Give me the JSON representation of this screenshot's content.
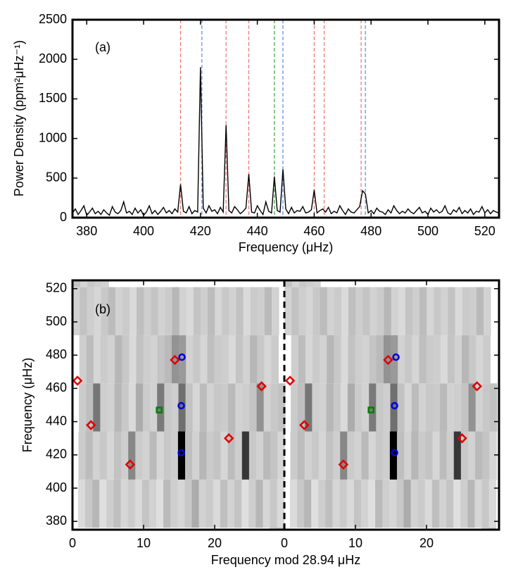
{
  "chart_data": [
    {
      "type": "line",
      "title": "(a)",
      "xlabel": "Frequency (μHz)",
      "ylabel": "Power Density (ppm²μHz⁻¹)",
      "color": "#000000",
      "x": [
        375,
        376,
        377,
        378,
        379,
        380,
        381,
        382,
        383,
        384,
        385,
        386,
        387,
        388,
        389,
        390,
        391,
        392,
        393,
        394,
        395,
        396,
        397,
        398,
        399,
        400,
        401,
        402,
        403,
        404,
        405,
        406,
        407,
        408,
        409,
        410,
        411,
        412,
        413,
        414,
        415,
        416,
        417,
        418,
        419,
        420,
        421,
        422,
        423,
        424,
        425,
        426,
        427,
        428,
        429,
        430,
        431,
        432,
        433,
        434,
        435,
        436,
        437,
        438,
        439,
        440,
        441,
        442,
        443,
        444,
        445,
        446,
        447,
        448,
        449,
        450,
        451,
        452,
        453,
        454,
        455,
        456,
        457,
        458,
        459,
        460,
        461,
        462,
        463,
        464,
        465,
        466,
        467,
        468,
        469,
        470,
        471,
        472,
        473,
        474,
        475,
        476,
        477,
        478,
        479,
        480,
        481,
        482,
        483,
        484,
        485,
        486,
        487,
        488,
        489,
        490,
        491,
        492,
        493,
        494,
        495,
        496,
        497,
        498,
        499,
        500,
        501,
        502,
        503,
        504,
        505,
        506,
        507,
        508,
        509,
        510,
        511,
        512,
        513,
        514,
        515,
        516,
        517,
        518,
        519,
        520,
        521,
        522,
        523,
        524,
        525
      ],
      "values": [
        60,
        110,
        40,
        90,
        150,
        30,
        70,
        120,
        50,
        80,
        40,
        100,
        60,
        30,
        140,
        70,
        50,
        90,
        200,
        60,
        80,
        40,
        120,
        60,
        100,
        30,
        70,
        150,
        50,
        90,
        40,
        80,
        130,
        60,
        90,
        50,
        110,
        70,
        420,
        80,
        60,
        140,
        50,
        90,
        70,
        1900,
        120,
        60,
        150,
        80,
        100,
        50,
        130,
        70,
        1170,
        90,
        60,
        140,
        100,
        50,
        80,
        120,
        550,
        70,
        60,
        150,
        90,
        40,
        200,
        80,
        60,
        520,
        90,
        70,
        610,
        110,
        50,
        130,
        60,
        90,
        80,
        140,
        60,
        70,
        100,
        350,
        60,
        90,
        110,
        70,
        130,
        50,
        80,
        60,
        150,
        90,
        40,
        110,
        70,
        60,
        100,
        140,
        340,
        300,
        60,
        90,
        50,
        120,
        80,
        70,
        40,
        100,
        60,
        150,
        90,
        50,
        80,
        60,
        110,
        70,
        50,
        90,
        130,
        60,
        80,
        40,
        120,
        70,
        100,
        60,
        80,
        150,
        60,
        40,
        100,
        70,
        130,
        50,
        90,
        60,
        110,
        40,
        80,
        70,
        140,
        60,
        100,
        50,
        90,
        70,
        60
      ],
      "modes": [
        {
          "color": "#f07070",
          "values": [
            413,
            429,
            437,
            460,
            463.5,
            476.5
          ]
        },
        {
          "color": "#6080f0",
          "values": [
            420.5,
            449,
            478
          ]
        },
        {
          "color": "#40a040",
          "values": [
            446
          ]
        }
      ],
      "xlim": [
        375,
        525
      ],
      "xticks": [
        380,
        400,
        420,
        440,
        460,
        480,
        500,
        520
      ],
      "ylim": [
        0,
        2500
      ],
      "yticks": [
        0,
        500,
        1000,
        1500,
        2000,
        2500
      ]
    },
    {
      "type": "scatter",
      "title": "(b)",
      "xlabel": "Frequency mod 28.94 μHz",
      "ylabel": "Frequency (μHz)",
      "period": 28.94,
      "divider": 29.8,
      "series": [
        {
          "marker": "diamond",
          "color": "#e00000",
          "x": [
            0.7,
            2.6,
            8.1,
            14.4,
            22,
            26.6,
            30.6,
            32.6,
            38.1,
            44.4,
            54.8,
            56.9
          ],
          "values": [
            464.6,
            437.9,
            414.2,
            477.1,
            430,
            461.3,
            464.6,
            437.9,
            414.2,
            477.1,
            430,
            461.3
          ]
        },
        {
          "marker": "circle",
          "color": "#0000e0",
          "x": [
            15.4,
            15.3,
            15.3,
            45.5,
            45.3,
            45.3
          ],
          "values": [
            478.8,
            449.6,
            421.3,
            478.8,
            449.6,
            421.3
          ]
        },
        {
          "marker": "square",
          "color": "#008000",
          "x": [
            12.2,
            42
          ],
          "values": [
            447,
            447
          ]
        }
      ],
      "xlim": [
        0,
        60
      ],
      "xticks": [
        0,
        10,
        20,
        {
          "value": 29.8,
          "label": "0"
        },
        {
          "value": 39.8,
          "label": "10"
        },
        {
          "value": 49.8,
          "label": "20"
        }
      ],
      "ylim": [
        375,
        525
      ],
      "yticks": [
        380,
        400,
        420,
        440,
        460,
        480,
        500,
        520
      ]
    }
  ]
}
